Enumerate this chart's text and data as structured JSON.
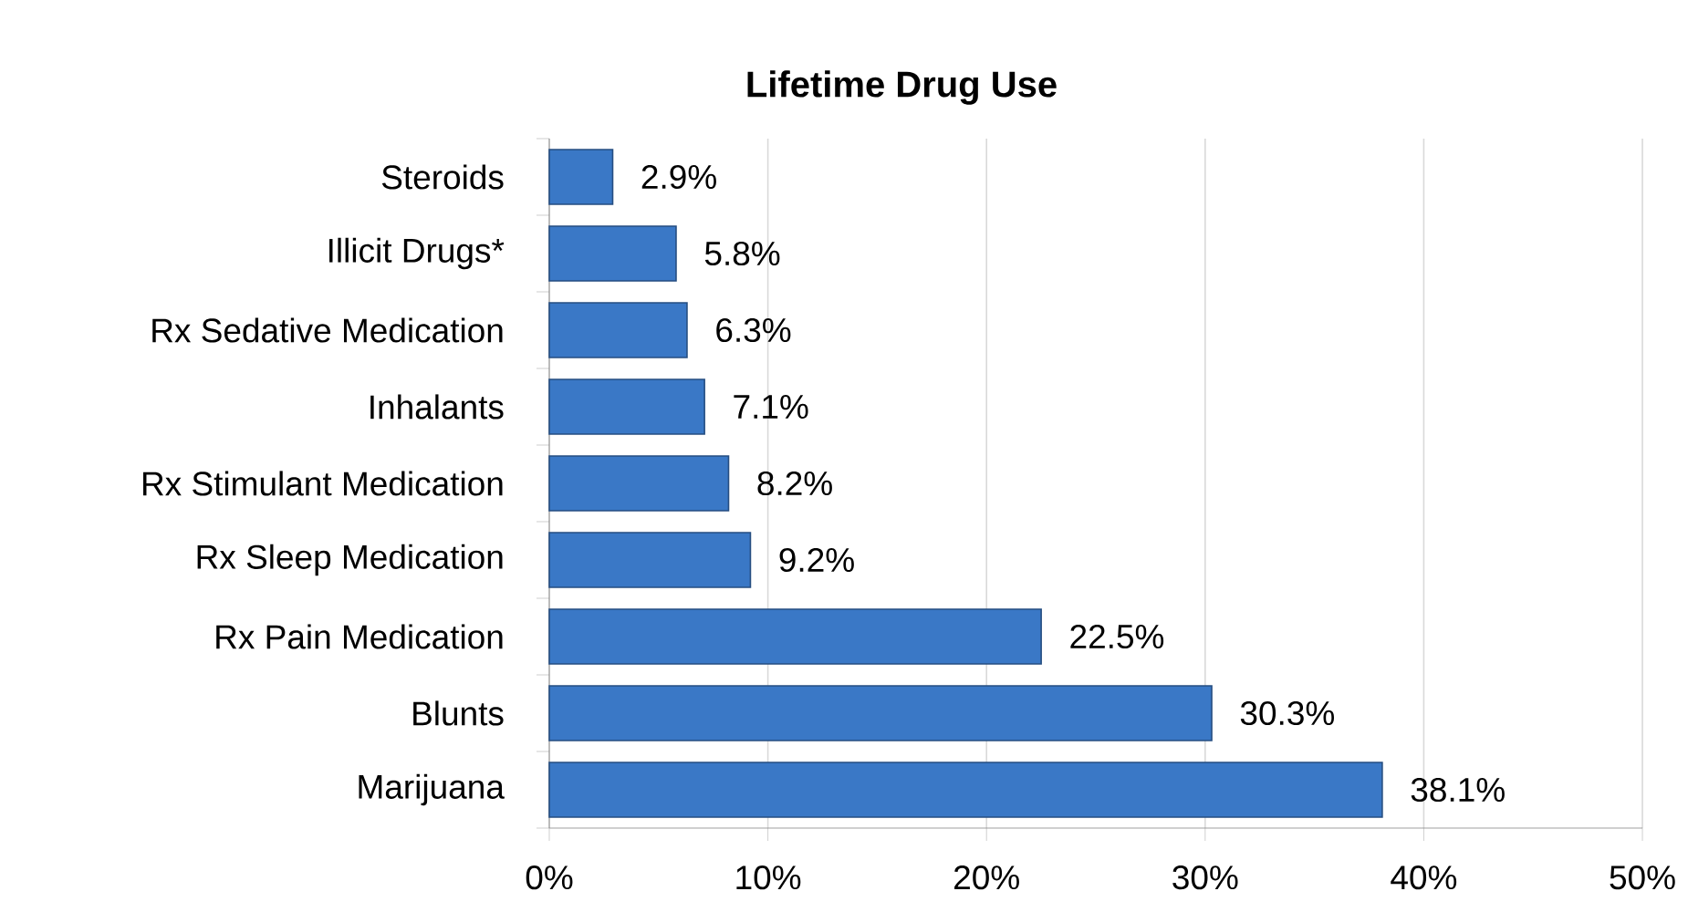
{
  "chart_data": {
    "type": "bar",
    "orientation": "horizontal",
    "title": "Lifetime Drug Use",
    "categories": [
      "Steroids",
      "Illicit Drugs*",
      "Rx Sedative Medication",
      "Inhalants",
      "Rx Stimulant Medication",
      "Rx Sleep Medication",
      "Rx Pain Medication",
      "Blunts",
      "Marijuana"
    ],
    "values": [
      2.9,
      5.8,
      6.3,
      7.1,
      8.2,
      9.2,
      22.5,
      30.3,
      38.1
    ],
    "value_labels": [
      "2.9%",
      "5.8%",
      "6.3%",
      "7.1%",
      "8.2%",
      "9.2%",
      "22.5%",
      "30.3%",
      "38.1%"
    ],
    "color": "#3a78c6",
    "xlim": [
      0,
      50
    ],
    "xticks": [
      {
        "value": 0,
        "label": "0%"
      },
      {
        "value": 10,
        "label": "10%"
      },
      {
        "value": 20,
        "label": "20%"
      },
      {
        "value": 30,
        "label": "30%"
      },
      {
        "value": 40,
        "label": "40%"
      },
      {
        "value": 50,
        "label": "50%"
      }
    ],
    "grid": "x"
  }
}
